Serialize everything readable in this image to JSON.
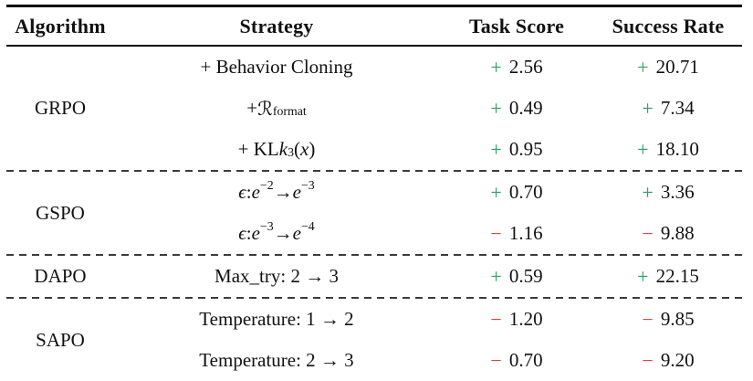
{
  "table": {
    "columns": [
      "Algorithm",
      "Strategy",
      "Task Score",
      "Success Rate"
    ],
    "colors": {
      "positive": "#2aa25f",
      "negative": "#d84038",
      "rule": "#000000",
      "dashed": "#3b3b3b"
    },
    "groups": [
      {
        "algorithm": "GRPO",
        "rows": [
          {
            "strategy_html": "+ Behavior Cloning",
            "strategy_text": "+ Behavior Cloning",
            "task": {
              "sign": "+",
              "value": "2.56"
            },
            "success": {
              "sign": "+",
              "value": "20.71"
            }
          },
          {
            "strategy_html": "+ <span class=\"cal\">ℛ</span><sub>format</sub>",
            "strategy_text": "+ R_format",
            "task": {
              "sign": "+",
              "value": "0.49"
            },
            "success": {
              "sign": "+",
              "value": "7.34"
            }
          },
          {
            "strategy_html": "+ KL <i>k</i><sub>3</sub>(<i>x</i>)",
            "strategy_text": "+ KL k_3(x)",
            "task": {
              "sign": "+",
              "value": "0.95"
            },
            "success": {
              "sign": "+",
              "value": "18.10"
            }
          }
        ]
      },
      {
        "algorithm": "GSPO",
        "rows": [
          {
            "strategy_html": "<i>ϵ</i> : <i>e</i><sup>−2</sup> → <i>e</i><sup>−3</sup>",
            "strategy_text": "epsilon: e^-2 -> e^-3",
            "task": {
              "sign": "+",
              "value": "0.70"
            },
            "success": {
              "sign": "+",
              "value": "3.36"
            }
          },
          {
            "strategy_html": "<i>ϵ</i> : <i>e</i><sup>−3</sup> → <i>e</i><sup>−4</sup>",
            "strategy_text": "epsilon: e^-3 -> e^-4",
            "task": {
              "sign": "−",
              "value": "1.16"
            },
            "success": {
              "sign": "−",
              "value": "9.88"
            }
          }
        ]
      },
      {
        "algorithm": "DAPO",
        "rows": [
          {
            "strategy_html": "Max_try: 2 → 3",
            "strategy_text": "Max_try: 2 -> 3",
            "task": {
              "sign": "+",
              "value": "0.59"
            },
            "success": {
              "sign": "+",
              "value": "22.15"
            }
          }
        ]
      },
      {
        "algorithm": "SAPO",
        "rows": [
          {
            "strategy_html": "Temperature: 1 → 2",
            "strategy_text": "Temperature: 1 -> 2",
            "task": {
              "sign": "−",
              "value": "1.20"
            },
            "success": {
              "sign": "−",
              "value": "9.85"
            }
          },
          {
            "strategy_html": "Temperature: 2 → 3",
            "strategy_text": "Temperature: 2 -> 3",
            "task": {
              "sign": "−",
              "value": "0.70"
            },
            "success": {
              "sign": "−",
              "value": "9.20"
            }
          }
        ]
      }
    ]
  }
}
